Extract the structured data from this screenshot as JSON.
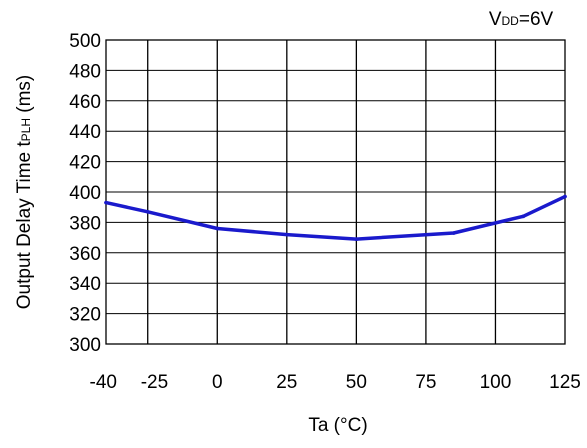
{
  "chart_data": {
    "type": "line",
    "condition_label": {
      "prefix": "V",
      "subscript": "DD",
      "suffix": "=6V"
    },
    "ylabel": {
      "prefix": "Output Delay Time t",
      "subscript": "PLH",
      "suffix": " (ms)"
    },
    "xlabel": "Ta (°C)",
    "xlim": [
      -40,
      125
    ],
    "ylim": [
      300,
      500
    ],
    "x_ticks": [
      -40,
      -25,
      0,
      25,
      50,
      75,
      100,
      125
    ],
    "x_tick_labels": [
      "-40",
      "-25",
      "0",
      "25",
      "50",
      "75",
      "100",
      "125"
    ],
    "y_ticks": [
      300,
      320,
      340,
      360,
      380,
      400,
      420,
      440,
      460,
      480,
      500
    ],
    "y_tick_labels": [
      "300",
      "320",
      "340",
      "360",
      "380",
      "400",
      "420",
      "440",
      "460",
      "480",
      "500"
    ],
    "grid": true,
    "line_color": "#1a1acc",
    "series": [
      {
        "x": [
          -40,
          -25,
          0,
          25,
          50,
          85,
          110,
          125
        ],
        "y": [
          393,
          387,
          376,
          372,
          369,
          373,
          384,
          397
        ]
      }
    ]
  }
}
